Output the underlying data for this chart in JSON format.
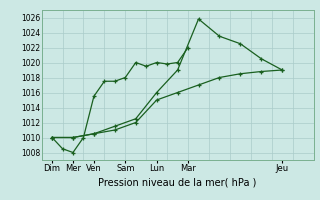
{
  "xlabel": "Pression niveau de la mer( hPa )",
  "bg_color": "#cce8e4",
  "grid_color": "#aaccca",
  "line_color": "#1a6020",
  "xlim": [
    0,
    13
  ],
  "ylim": [
    1007,
    1027
  ],
  "yticks": [
    1008,
    1010,
    1012,
    1014,
    1016,
    1018,
    1020,
    1022,
    1024,
    1026
  ],
  "ytick_labels": [
    "1008",
    "1010",
    "1012",
    "1014",
    "1016",
    "1018",
    "1020",
    "1022",
    "1024",
    "1026"
  ],
  "major_xtick_positions": [
    0.5,
    1.5,
    2.5,
    4.0,
    5.5,
    7.0,
    11.5
  ],
  "major_xtick_labels": [
    "Dim",
    "Mer",
    "Ven",
    "Sam",
    "Lun",
    "Mar",
    "Jeu"
  ],
  "grid_x_positions": [
    0,
    1,
    2,
    3,
    4,
    5,
    6,
    7,
    8,
    9,
    10,
    11,
    12,
    13
  ],
  "series": [
    {
      "x": [
        0.5,
        1.0,
        1.5,
        2.0,
        2.5,
        3.0,
        3.5,
        4.0,
        4.5,
        5.0,
        5.5,
        6.0,
        6.5,
        7.0
      ],
      "y": [
        1010,
        1008.5,
        1008,
        1010,
        1015.5,
        1017.5,
        1017.5,
        1018,
        1020,
        1019.5,
        1020,
        1019.8,
        1020,
        1022
      ],
      "marker": "+"
    },
    {
      "x": [
        0.5,
        1.5,
        2.5,
        3.5,
        4.5,
        5.5,
        6.5,
        7.5,
        8.5,
        9.5,
        10.5,
        11.5
      ],
      "y": [
        1010,
        1010,
        1010.5,
        1011,
        1012,
        1015,
        1016,
        1017,
        1018,
        1018.5,
        1018.8,
        1019
      ],
      "marker": "+"
    },
    {
      "x": [
        0.5,
        1.5,
        2.5,
        3.5,
        4.5,
        5.5,
        6.5,
        7.5,
        8.5,
        9.5,
        10.5,
        11.5
      ],
      "y": [
        1010,
        1010,
        1010.5,
        1011.5,
        1012.5,
        1016,
        1019,
        1025.8,
        1023.5,
        1022.5,
        1020.5,
        1019
      ],
      "marker": "+"
    }
  ]
}
